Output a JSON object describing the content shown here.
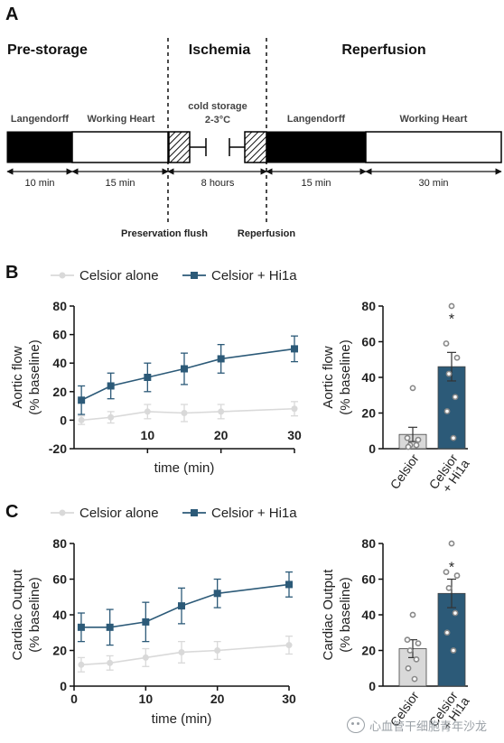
{
  "colors": {
    "hi1a": "#2c5a78",
    "celsior": "#d9d9d9",
    "celsior_dot": "#888888",
    "dark": "#222222"
  },
  "panel_a": {
    "label": "A",
    "phases": [
      "Pre-storage",
      "Ischemia",
      "Reperfusion"
    ],
    "segments": [
      "Langendorff",
      "Working Heart",
      "cold storage",
      "2-3°C",
      "Langendorff",
      "Working Heart"
    ],
    "durations": [
      "10 min",
      "15 min",
      "8 hours",
      "15 min",
      "30 min"
    ],
    "markers": [
      "Preservation flush",
      "Reperfusion"
    ]
  },
  "panel_b": {
    "label": "B"
  },
  "panel_c": {
    "label": "C"
  },
  "watermark": {
    "text": "心血管干细胞青年沙龙"
  },
  "chart_data": [
    {
      "type": "line",
      "panel": "B",
      "xlabel": "time (min)",
      "ylabel": [
        "Aortic flow",
        "(% baseline)"
      ],
      "xlim": [
        0,
        30
      ],
      "ylim": [
        -20,
        80
      ],
      "xticks": [
        10,
        20,
        30
      ],
      "yticks": [
        -20,
        0,
        20,
        40,
        60,
        80
      ],
      "legend": "top",
      "series": [
        {
          "name": "Celsior alone",
          "color": "#d9d9d9",
          "x": [
            1,
            5,
            10,
            15,
            20,
            30
          ],
          "y": [
            0,
            2,
            6,
            5,
            6,
            8
          ],
          "err": [
            3,
            4,
            5,
            6,
            5,
            5
          ]
        },
        {
          "name": "Celsior + Hi1a",
          "color": "#2c5a78",
          "x": [
            1,
            5,
            10,
            15,
            20,
            30
          ],
          "y": [
            14,
            24,
            30,
            36,
            43,
            50
          ],
          "err": [
            10,
            9,
            10,
            11,
            10,
            9
          ]
        }
      ]
    },
    {
      "type": "bar",
      "panel": "B",
      "ylabel": [
        "Aortic flow",
        "(% baseline)"
      ],
      "ylim": [
        0,
        80
      ],
      "yticks": [
        0,
        20,
        40,
        60,
        80
      ],
      "categories": [
        "Celsior",
        "Celsior + Hi1a"
      ],
      "values": [
        8,
        46
      ],
      "err": [
        4,
        8
      ],
      "points": [
        [
          34,
          6,
          5,
          2,
          2,
          1
        ],
        [
          80,
          59,
          51,
          42,
          29,
          21,
          6
        ]
      ],
      "annotation": "*"
    },
    {
      "type": "line",
      "panel": "C",
      "xlabel": "time (min)",
      "ylabel": [
        "Cardiac Output",
        "(% baseline)"
      ],
      "xlim": [
        0,
        30
      ],
      "ylim": [
        0,
        80
      ],
      "xticks": [
        0,
        10,
        20,
        30
      ],
      "yticks": [
        0,
        20,
        40,
        60,
        80
      ],
      "legend": "top",
      "series": [
        {
          "name": "Celsior alone",
          "color": "#d9d9d9",
          "x": [
            1,
            5,
            10,
            15,
            20,
            30
          ],
          "y": [
            12,
            13,
            16,
            19,
            20,
            23
          ],
          "err": [
            4,
            4,
            5,
            6,
            5,
            5
          ]
        },
        {
          "name": "Celsior + Hi1a",
          "color": "#2c5a78",
          "x": [
            1,
            5,
            10,
            15,
            20,
            30
          ],
          "y": [
            33,
            33,
            36,
            45,
            52,
            57
          ],
          "err": [
            8,
            10,
            11,
            10,
            8,
            7
          ]
        }
      ]
    },
    {
      "type": "bar",
      "panel": "C",
      "ylabel": [
        "Cardiac Output",
        "(% baseline)"
      ],
      "ylim": [
        0,
        80
      ],
      "yticks": [
        0,
        20,
        40,
        60,
        80
      ],
      "categories": [
        "Celsior",
        "Celsior + Hi1a"
      ],
      "values": [
        21,
        52
      ],
      "err": [
        5,
        8
      ],
      "points": [
        [
          40,
          26,
          24,
          20,
          15,
          10,
          4
        ],
        [
          80,
          64,
          62,
          55,
          41,
          30,
          20
        ]
      ],
      "annotation": "*"
    }
  ]
}
